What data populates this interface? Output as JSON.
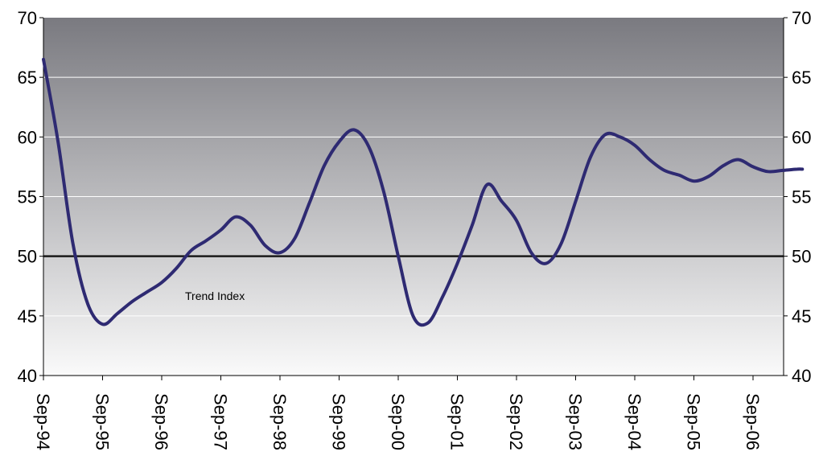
{
  "chart_data": {
    "type": "line",
    "title": "",
    "xlabel": "",
    "ylabel": "",
    "ylim": [
      40,
      70
    ],
    "yticks": [
      40,
      45,
      50,
      55,
      60,
      65,
      70
    ],
    "right_axis": true,
    "grid": true,
    "reference_line": 50,
    "x_tick_labels": [
      "Sep-94",
      "Sep-95",
      "Sep-96",
      "Sep-97",
      "Sep-98",
      "Sep-99",
      "Sep-00",
      "Sep-01",
      "Sep-02",
      "Sep-03",
      "Sep-04",
      "Sep-05",
      "Sep-06"
    ],
    "x_range": [
      "Sep-94",
      "Jul-07"
    ],
    "annotation": "Trend Index",
    "colors": {
      "line": "#2e2a72",
      "background_top": "#7a7a80",
      "background_bottom": "#fafafa",
      "reference": "#1a1a1a",
      "grid": "#ffffff"
    },
    "series": [
      {
        "x": [
          "Sep-94",
          "Dec-94",
          "Mar-95",
          "Jun-95",
          "Sep-95",
          "Dec-95",
          "Mar-96",
          "Jun-96",
          "Sep-96",
          "Dec-96",
          "Mar-97",
          "Jun-97",
          "Sep-97",
          "Dec-97",
          "Mar-98",
          "Jun-98",
          "Sep-98",
          "Dec-98",
          "Mar-99",
          "Jun-99",
          "Sep-99",
          "Dec-99",
          "Mar-00",
          "Jun-00",
          "Sep-00",
          "Dec-00",
          "Mar-01",
          "Jun-01",
          "Sep-01",
          "Dec-01",
          "Mar-02",
          "Jun-02",
          "Sep-02",
          "Dec-02",
          "Mar-03",
          "Jun-03",
          "Sep-03",
          "Dec-03",
          "Mar-04",
          "Jun-04",
          "Sep-04",
          "Dec-04",
          "Mar-05",
          "Jun-05",
          "Sep-05",
          "Dec-05",
          "Mar-06",
          "Jun-06",
          "Sep-06",
          "Dec-06",
          "Mar-07",
          "Jun-07",
          "Jul-07"
        ],
        "values": [
          66.5,
          59.5,
          51.0,
          46.0,
          44.3,
          45.2,
          46.2,
          47.0,
          47.8,
          49.0,
          50.5,
          51.3,
          52.2,
          53.3,
          52.6,
          50.9,
          50.3,
          51.5,
          54.5,
          57.6,
          59.6,
          60.6,
          59.2,
          55.5,
          50.0,
          45.0,
          44.4,
          46.6,
          49.4,
          52.6,
          56.0,
          54.6,
          53.0,
          50.3,
          49.4,
          51.0,
          54.6,
          58.3,
          60.2,
          60.0,
          59.3,
          58.1,
          57.2,
          56.8,
          56.3,
          56.7,
          57.6,
          58.1,
          57.5,
          57.1,
          57.2,
          57.3,
          57.3
        ]
      }
    ]
  }
}
